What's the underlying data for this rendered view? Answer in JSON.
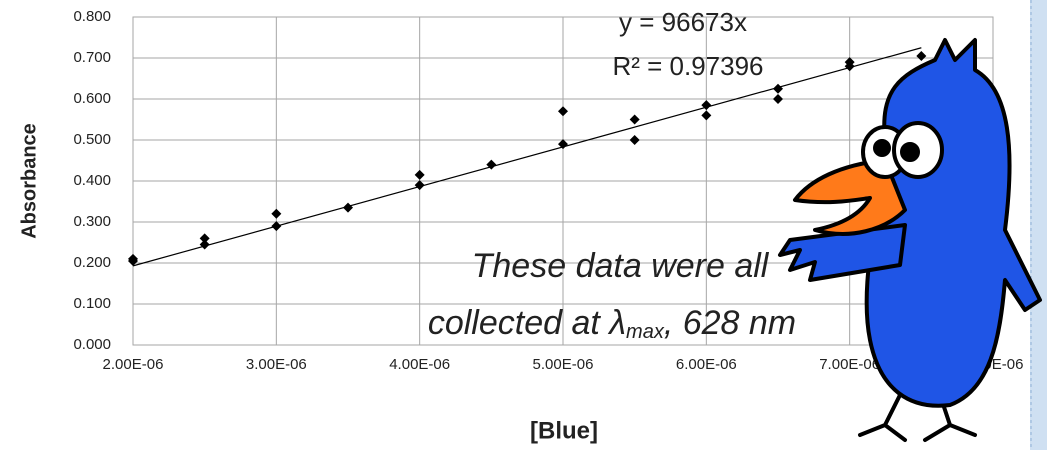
{
  "chart_data": {
    "type": "scatter",
    "xlabel": "[Blue]",
    "ylabel": "Absorbance",
    "series": [
      {
        "color": "#000000",
        "x": [
          2e-06,
          2e-06,
          2.5e-06,
          2.5e-06,
          3e-06,
          3e-06,
          3.5e-06,
          4e-06,
          4e-06,
          4.5e-06,
          5e-06,
          5e-06,
          5.5e-06,
          5.5e-06,
          6e-06,
          6e-06,
          6.5e-06,
          6.5e-06,
          7e-06,
          7e-06,
          7.5e-06
        ],
        "values": [
          0.21,
          0.205,
          0.26,
          0.245,
          0.32,
          0.29,
          0.335,
          0.415,
          0.39,
          0.44,
          0.57,
          0.49,
          0.55,
          0.5,
          0.585,
          0.56,
          0.625,
          0.6,
          0.69,
          0.68,
          0.705
        ]
      }
    ],
    "trendline": {
      "color": "#000000",
      "x": [
        2e-06,
        7.5e-06
      ],
      "values": [
        0.193,
        0.725
      ]
    },
    "annotations": {
      "equation": "y = 96673x",
      "r_squared": "R² = 0.97396",
      "note_line1": "These data were all",
      "note_line2": "collected at λ",
      "note_sub": "max",
      "note_end": ", 628 nm"
    },
    "xlim": [
      2e-06,
      8e-06
    ],
    "xticks": [
      {
        "value": 2e-06,
        "label": "2.00E-06"
      },
      {
        "value": 3e-06,
        "label": "3.00E-06"
      },
      {
        "value": 4e-06,
        "label": "4.00E-06"
      },
      {
        "value": 5e-06,
        "label": "5.00E-06"
      },
      {
        "value": 6e-06,
        "label": "6.00E-06"
      },
      {
        "value": 7e-06,
        "label": "7.00E-06"
      },
      {
        "value": 8e-06,
        "label": "8.00E-06"
      }
    ],
    "ylim": [
      0,
      0.8
    ],
    "yticks": [
      {
        "value": 0,
        "label": "0.000"
      },
      {
        "value": 0.1,
        "label": "0.100"
      },
      {
        "value": 0.2,
        "label": "0.200"
      },
      {
        "value": 0.3,
        "label": "0.300"
      },
      {
        "value": 0.4,
        "label": "0.400"
      },
      {
        "value": 0.5,
        "label": "0.500"
      },
      {
        "value": 0.6,
        "label": "0.600"
      },
      {
        "value": 0.7,
        "label": "0.700"
      },
      {
        "value": 0.8,
        "label": "0.800"
      }
    ],
    "grid": true
  }
}
